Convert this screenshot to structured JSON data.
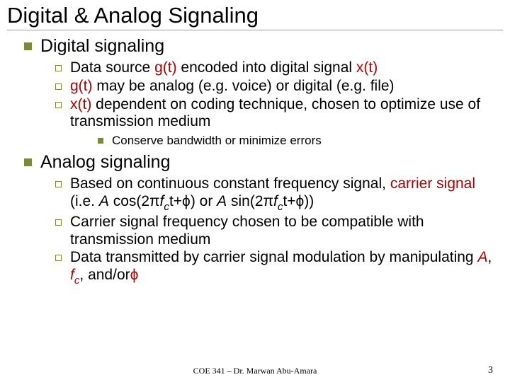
{
  "title": "Digital & Analog Signaling",
  "sections": [
    {
      "heading": "Digital signaling",
      "items": [
        {
          "pre": "Data source ",
          "em1": "g(t)",
          "mid1": " encoded into digital signal ",
          "em2": "x(t)",
          "post": ""
        },
        {
          "pre": "",
          "em1": "g(t)",
          "mid1": " may be analog (e.g. voice) or digital (e.g. file)",
          "em2": "",
          "post": ""
        },
        {
          "pre": "",
          "em1": "x(t)",
          "mid1": " dependent on coding technique, chosen to optimize use of transmission medium",
          "em2": "",
          "post": ""
        }
      ],
      "subitems": [
        "Conserve bandwidth or minimize errors"
      ]
    },
    {
      "heading": "Analog signaling",
      "items_html": [
        {
          "parts": [
            {
              "t": "Based on continuous constant frequency signal, "
            },
            {
              "t": "carrier signal",
              "cls": "emph"
            },
            {
              "t": " (i.e. "
            },
            {
              "t": "A",
              "cls": "ital"
            },
            {
              "t": " cos(2π"
            },
            {
              "t": "f",
              "cls": "ital"
            },
            {
              "t": "c",
              "cls": "ital sub"
            },
            {
              "t": "t+ϕ) or "
            },
            {
              "t": "A",
              "cls": "ital"
            },
            {
              "t": " sin(2π"
            },
            {
              "t": "f",
              "cls": "ital"
            },
            {
              "t": "c",
              "cls": "ital sub"
            },
            {
              "t": "t+ϕ))"
            }
          ]
        },
        {
          "parts": [
            {
              "t": "Carrier signal frequency chosen to be compatible with transmission medium"
            }
          ]
        },
        {
          "parts": [
            {
              "t": "Data transmitted by carrier signal modulation by manipulating "
            },
            {
              "t": "A",
              "cls": "ital emph"
            },
            {
              "t": ", "
            },
            {
              "t": "f",
              "cls": "ital emph"
            },
            {
              "t": "c",
              "cls": "ital emph sub"
            },
            {
              "t": ", and/or"
            },
            {
              "t": "ϕ",
              "cls": "emph"
            }
          ]
        }
      ]
    }
  ],
  "footer": "COE 341 – Dr. Marwan Abu-Amara",
  "page": "3",
  "colors": {
    "bullet": "#7a8a3a",
    "emph": "#b00000",
    "text": "#000000",
    "bg": "#ffffff",
    "rule": "#999999"
  },
  "fonts": {
    "body": "Arial",
    "footer": "Times New Roman",
    "title_size": 31,
    "l1_size": 25,
    "l2_size": 21,
    "l3_size": 17,
    "footer_size": 12
  }
}
